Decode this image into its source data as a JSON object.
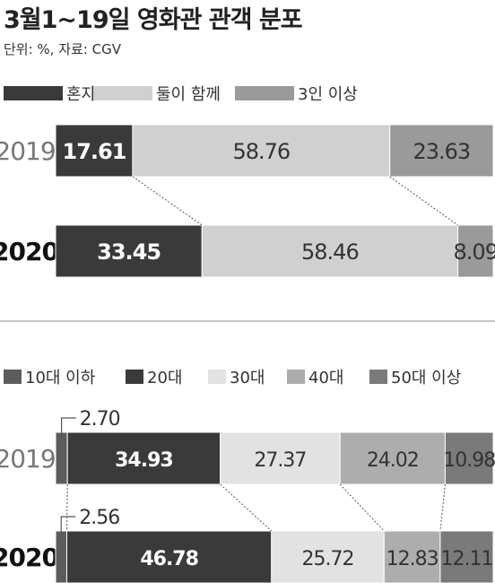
{
  "title": "3월1~19일 영화관 관객 분포",
  "source": "단위: %, 자료: CGV",
  "chart_data": [
    {
      "type": "bar",
      "stacked": true,
      "orientation": "horizontal",
      "categories": [
        "2019",
        "2020"
      ],
      "series": [
        {
          "name": "혼자",
          "values": [
            17.61,
            33.45
          ],
          "color": "#3a3a3a"
        },
        {
          "name": "둘이 함께",
          "values": [
            58.76,
            58.46
          ],
          "color": "#d0d0d0"
        },
        {
          "name": "3인 이상",
          "values": [
            23.63,
            8.09
          ],
          "color": "#9a9a9a"
        }
      ],
      "labels": [
        [
          "17.61",
          "58.76",
          "23.63"
        ],
        [
          "33.45",
          "58.46",
          "8.09"
        ]
      ],
      "xlim": [
        0,
        100
      ],
      "legend": "top-left"
    },
    {
      "type": "bar",
      "stacked": true,
      "orientation": "horizontal",
      "categories": [
        "2019",
        "2020"
      ],
      "series": [
        {
          "name": "10대 이하",
          "values": [
            2.7,
            2.56
          ],
          "color": "#5c5c5c"
        },
        {
          "name": "20대",
          "values": [
            34.93,
            46.78
          ],
          "color": "#3a3a3a"
        },
        {
          "name": "30대",
          "values": [
            27.37,
            25.72
          ],
          "color": "#e2e2e2"
        },
        {
          "name": "40대",
          "values": [
            24.02,
            12.83
          ],
          "color": "#adadad"
        },
        {
          "name": "50대 이상",
          "values": [
            10.98,
            12.11
          ],
          "color": "#7a7a7a"
        }
      ],
      "labels": [
        [
          "2.70",
          "34.93",
          "27.37",
          "24.02",
          "10.98"
        ],
        [
          "2.56",
          "46.78",
          "25.72",
          "12.83",
          "12.11"
        ]
      ],
      "xlim": [
        0,
        100
      ],
      "legend": "top-left"
    }
  ]
}
